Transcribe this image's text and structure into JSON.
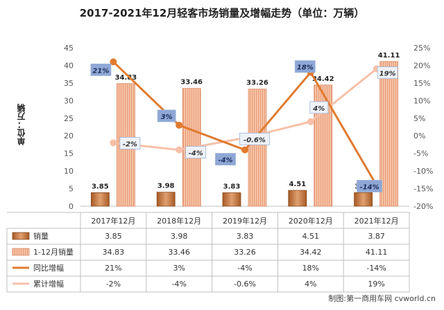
{
  "chart_data": {
    "type": "bar",
    "title": "2017-2021年12月轻客市场销量及增幅走势（单位：万辆）",
    "ylabel": "单位：万辆",
    "categories": [
      "2017年12月",
      "2018年12月",
      "2019年12月",
      "2020年12月",
      "2021年12月"
    ],
    "ylim": [
      0,
      45
    ],
    "yticks": [
      "0",
      "5",
      "10",
      "15",
      "20",
      "25",
      "30",
      "35",
      "40",
      "45"
    ],
    "y2lim": [
      -20,
      25
    ],
    "y2ticks": [
      "-20%",
      "-15%",
      "-10%",
      "-5%",
      "0%",
      "5%",
      "10%",
      "15%",
      "20%",
      "25%"
    ],
    "grid": false,
    "series": [
      {
        "name": "销量",
        "kind": "bar",
        "axis": "left",
        "values": [
          3.85,
          3.98,
          3.83,
          4.51,
          3.87
        ],
        "labels": [
          "3.85",
          "3.98",
          "3.83",
          "4.51",
          "3.87"
        ],
        "color": "#c8783c"
      },
      {
        "name": "1-12月销量",
        "kind": "bar",
        "axis": "left",
        "values": [
          34.83,
          33.46,
          33.26,
          34.42,
          41.11
        ],
        "labels": [
          "34.83",
          "33.46",
          "33.26",
          "34.42",
          "41.11"
        ],
        "color": "#f4b89a"
      },
      {
        "name": "同比增幅",
        "kind": "line",
        "axis": "right",
        "values": [
          21,
          3,
          -4,
          18,
          -14
        ],
        "labels": [
          "21%",
          "3%",
          "-4%",
          "18%",
          "-14%"
        ],
        "color": "#e07b30"
      },
      {
        "name": "累计增幅",
        "kind": "line",
        "axis": "right",
        "values": [
          -2,
          -4,
          -0.6,
          4,
          19
        ],
        "labels": [
          "-2%",
          "-4%",
          "-0.6%",
          "4%",
          "19%"
        ],
        "color": "#f8c0a8"
      }
    ]
  },
  "credit": "制图:第一商用车网 cvworld.cn"
}
